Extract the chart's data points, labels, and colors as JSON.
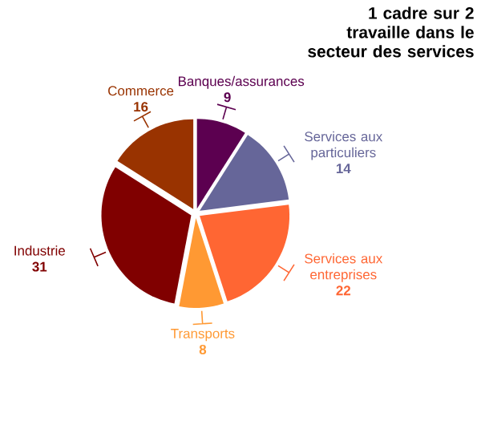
{
  "chart_data": {
    "type": "pie",
    "title": "1 cadre sur 2 travaille dans le secteur des services",
    "categories": [
      "Banques/assurances",
      "Services aux particuliers",
      "Services aux entreprises",
      "Transports",
      "Industrie",
      "Commerce"
    ],
    "values": [
      9,
      14,
      22,
      8,
      31,
      16
    ],
    "colors": [
      "#5c0050",
      "#666699",
      "#ff6633",
      "#ff9933",
      "#800000",
      "#993300"
    ],
    "data_labels": true
  }
}
